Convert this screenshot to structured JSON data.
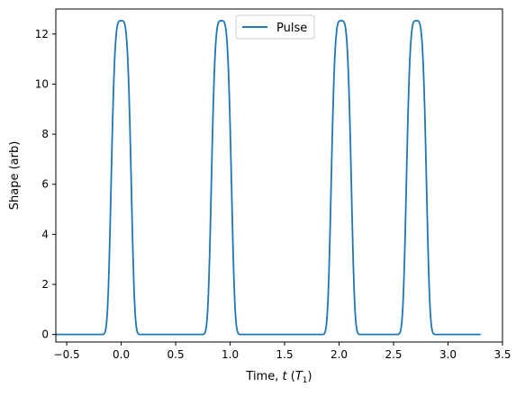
{
  "chart_data": {
    "type": "line",
    "xlabel": "Time, t (T1)",
    "xlabel_parts": {
      "prefix": "Time, ",
      "var": "t",
      "open": " (",
      "unit": "T",
      "sub": "1",
      "close": ")"
    },
    "ylabel": "Shape (arb)",
    "xlim": [
      -0.6,
      3.5
    ],
    "ylim": [
      -0.3,
      13
    ],
    "xticks": [
      -0.5,
      0.0,
      0.5,
      1.0,
      1.5,
      2.0,
      2.5,
      3.0,
      3.5
    ],
    "xtick_labels": [
      "−0.5",
      "0.0",
      "0.5",
      "1.0",
      "1.5",
      "2.0",
      "2.5",
      "3.0",
      "3.5"
    ],
    "yticks": [
      0,
      2,
      4,
      6,
      8,
      10,
      12
    ],
    "ytick_labels": [
      "0",
      "2",
      "4",
      "6",
      "8",
      "10",
      "12"
    ],
    "legend": {
      "position": "top-center",
      "entries": [
        "Pulse"
      ]
    },
    "grid": false,
    "series": [
      {
        "name": "Pulse",
        "color": "#1f77b4",
        "x_range": [
          -0.6,
          3.3
        ],
        "peaks": [
          0.0,
          0.92,
          2.02,
          2.71
        ],
        "peak_height": 12.53,
        "width": 0.1
      }
    ]
  }
}
